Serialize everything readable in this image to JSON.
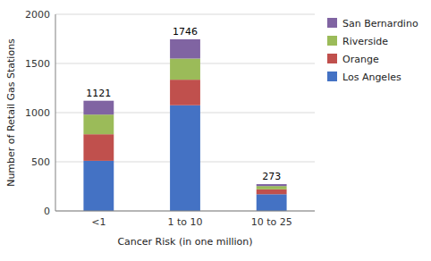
{
  "chart_data": {
    "type": "bar",
    "stacked": true,
    "xlabel": "Cancer Risk  (in one million)",
    "ylabel": "Number of Retail Gas Stations",
    "categories": [
      "<1",
      "1 to 10",
      "10 to 25"
    ],
    "series": [
      {
        "name": "Los Angeles",
        "color": "#4472C4",
        "values": [
          510,
          1075,
          170
        ]
      },
      {
        "name": "Orange",
        "color": "#C0504D",
        "values": [
          270,
          260,
          50
        ]
      },
      {
        "name": "Riverside",
        "color": "#9BBB59",
        "values": [
          200,
          215,
          33
        ]
      },
      {
        "name": "San Bernardino",
        "color": "#8064A2",
        "values": [
          141,
          196,
          20
        ]
      }
    ],
    "totals": [
      1121,
      1746,
      273
    ],
    "ylim": [
      0,
      2000
    ],
    "yticks": [
      0,
      500,
      1000,
      1500,
      2000
    ],
    "grid": true,
    "legend": "right"
  }
}
